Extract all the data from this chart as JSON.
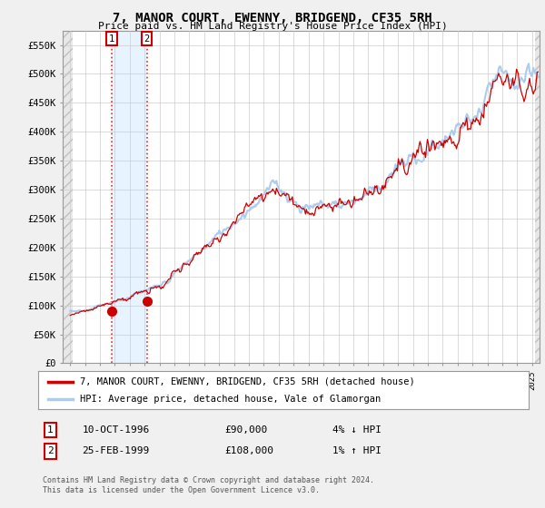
{
  "title": "7, MANOR COURT, EWENNY, BRIDGEND, CF35 5RH",
  "subtitle": "Price paid vs. HM Land Registry's House Price Index (HPI)",
  "ylabel_ticks": [
    "£0",
    "£50K",
    "£100K",
    "£150K",
    "£200K",
    "£250K",
    "£300K",
    "£350K",
    "£400K",
    "£450K",
    "£500K",
    "£550K"
  ],
  "ytick_values": [
    0,
    50000,
    100000,
    150000,
    200000,
    250000,
    300000,
    350000,
    400000,
    450000,
    500000,
    550000
  ],
  "ylim": [
    0,
    575000
  ],
  "xlim_start": 1993.5,
  "xlim_end": 2025.5,
  "hpi_color": "#aaccee",
  "price_color": "#cc0000",
  "bg_color": "#f0f0f0",
  "plot_bg_color": "#ffffff",
  "grid_color": "#cccccc",
  "purchase1_x": 1996.78,
  "purchase1_y": 90000,
  "purchase2_x": 1999.14,
  "purchase2_y": 108000,
  "legend_line1": "7, MANOR COURT, EWENNY, BRIDGEND, CF35 5RH (detached house)",
  "legend_line2": "HPI: Average price, detached house, Vale of Glamorgan",
  "annotation1_label": "1",
  "annotation1_date": "10-OCT-1996",
  "annotation1_price": "£90,000",
  "annotation1_hpi": "4% ↓ HPI",
  "annotation2_label": "2",
  "annotation2_date": "25-FEB-1999",
  "annotation2_price": "£108,000",
  "annotation2_hpi": "1% ↑ HPI",
  "footer": "Contains HM Land Registry data © Crown copyright and database right 2024.\nThis data is licensed under the Open Government Licence v3.0."
}
